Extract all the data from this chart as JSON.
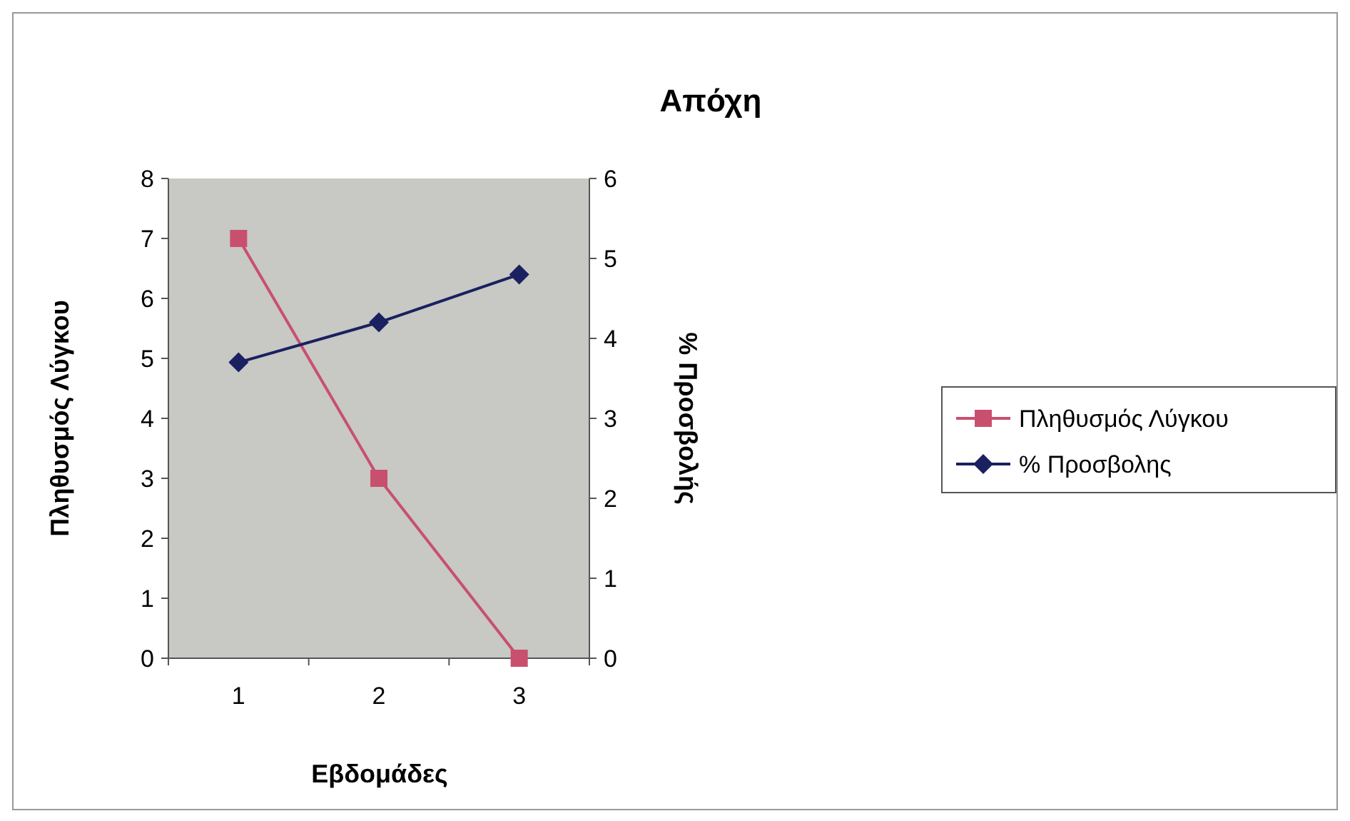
{
  "chart_data": {
    "type": "line",
    "title": "Απόχη",
    "xlabel": "Εβδομάδες",
    "ylabel": "Πληθυσμός Λύγκου",
    "y2label": "% Προσβολής",
    "categories": [
      "1",
      "2",
      "3"
    ],
    "series": [
      {
        "name": "Πληθυσμός Λύγκου",
        "color": "#c8506e",
        "marker": "square",
        "values": [
          7,
          3,
          0
        ]
      },
      {
        "name": "% Προσβολης",
        "color": "#1a2060",
        "marker": "diamond",
        "axis": "y2",
        "values": [
          3.7,
          4.2,
          4.8
        ]
      }
    ],
    "ylim": [
      0,
      8
    ],
    "yticks": [
      0,
      1,
      2,
      3,
      4,
      5,
      6,
      7,
      8
    ],
    "y2lim": [
      0,
      6
    ],
    "y2ticks": [
      0,
      1,
      2,
      3,
      4,
      5,
      6
    ],
    "grid": false,
    "legend": "right",
    "line_style": "solid"
  }
}
